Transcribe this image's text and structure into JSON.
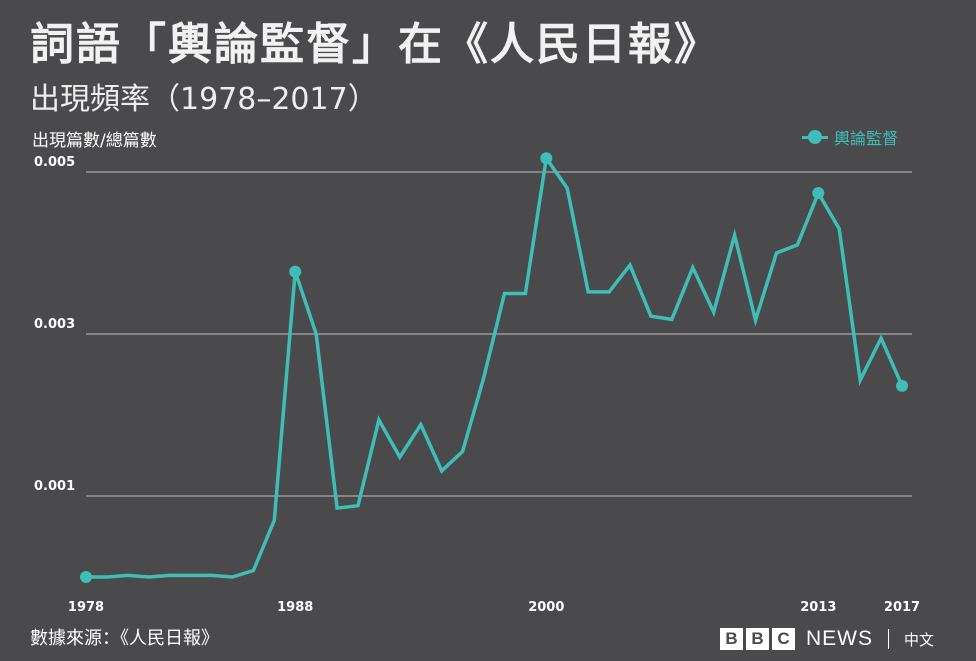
{
  "header": {
    "title": "詞語「輿論監督」在《人民日報》",
    "subtitle": "出現頻率（1978–2017）"
  },
  "footer": {
    "source": "數據來源：《人民日報》",
    "logo_letters": [
      "B",
      "B",
      "C"
    ],
    "logo_news": "NEWS",
    "logo_lang": "中文"
  },
  "colors": {
    "background": "#4a4a4c",
    "series": "#3fbdb7",
    "grid": "#9a9a9a"
  },
  "chart_data": {
    "type": "line",
    "title": "詞語「輿論監督」在《人民日報》",
    "subtitle": "出現頻率（1978–2017）",
    "ylabel": "出現篇數/總篇數",
    "xlabel": "",
    "x": [
      1978,
      1979,
      1980,
      1981,
      1982,
      1983,
      1984,
      1985,
      1986,
      1987,
      1988,
      1989,
      1990,
      1991,
      1992,
      1993,
      1994,
      1995,
      1996,
      1997,
      1998,
      1999,
      2000,
      2001,
      2002,
      2003,
      2004,
      2005,
      2006,
      2007,
      2008,
      2009,
      2010,
      2011,
      2012,
      2013,
      2014,
      2015,
      2016,
      2017
    ],
    "x_ticks": [
      1978,
      1988,
      2000,
      2013,
      2017
    ],
    "y_ticks": [
      0.001,
      0.003,
      0.005
    ],
    "y_tick_labels": [
      "0.001",
      "0.003",
      "0.005"
    ],
    "ylim": [
      0.0,
      0.0052
    ],
    "grid": "horizontal",
    "legend": "top-right",
    "series": [
      {
        "name": "輿論監督",
        "values": [
          0.0,
          0.0,
          2e-05,
          0.0,
          2e-05,
          2e-05,
          2e-05,
          0.0,
          8e-05,
          0.0007,
          0.00377,
          0.003,
          0.00085,
          0.00088,
          0.00194,
          0.00148,
          0.00188,
          0.00131,
          0.00155,
          0.00245,
          0.0035,
          0.0035,
          0.00517,
          0.0048,
          0.00352,
          0.00352,
          0.00385,
          0.00322,
          0.00318,
          0.00382,
          0.00327,
          0.00422,
          0.00317,
          0.004,
          0.0041,
          0.00474,
          0.0043,
          0.00243,
          0.00295,
          0.00236
        ],
        "highlight_x": [
          1978,
          1988,
          2000,
          2013,
          2017
        ]
      }
    ]
  }
}
